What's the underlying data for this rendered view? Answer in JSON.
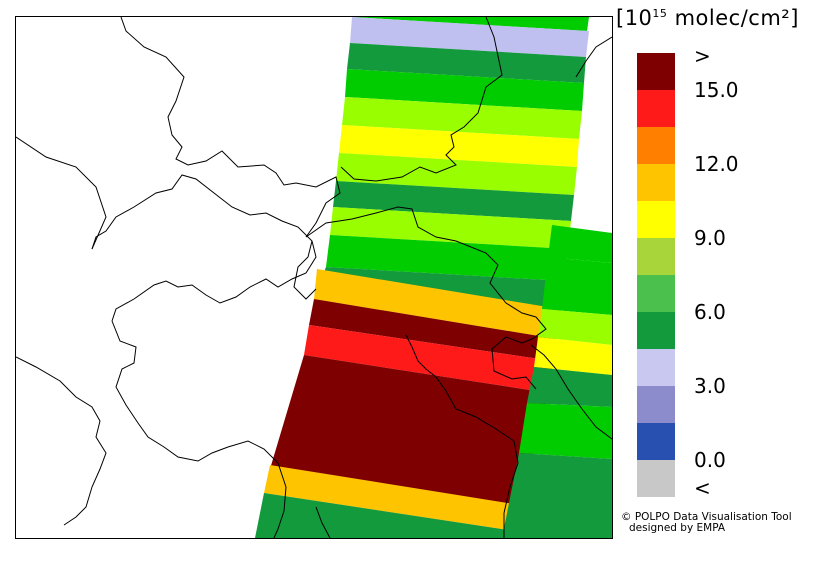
{
  "legend": {
    "unit_prefix": "[10",
    "unit_exponent": "15",
    "unit_suffix": " molec/cm²]",
    "labels": [
      ">",
      "15.0",
      "12.0",
      "9.0",
      "6.0",
      "3.0",
      "0.0",
      "<"
    ],
    "colors": [
      "#7f0000",
      "#ff1a1a",
      "#ff8000",
      "#ffc400",
      "#ffff00",
      "#a8d63a",
      "#4cc04c",
      "#139a3c",
      "#c8c8f0",
      "#8c8ccc",
      "#2850b0",
      "#c8c8c8"
    ]
  },
  "credit": {
    "line1": "© POLPO Data Visualisation Tool",
    "line2": "designed by EMPA"
  },
  "map": {
    "basemap": "Northern Italy, Switzerland and surrounding Alps (outline map)",
    "swath_colors": {
      "dark_red": "#7f0000",
      "red": "#ff1a1a",
      "orange": "#ffc400",
      "yellow": "#ffff00",
      "light_green": "#99ff00",
      "green": "#00cc00",
      "dark_green": "#139a3c",
      "lavender": "#c0c0f0"
    }
  }
}
